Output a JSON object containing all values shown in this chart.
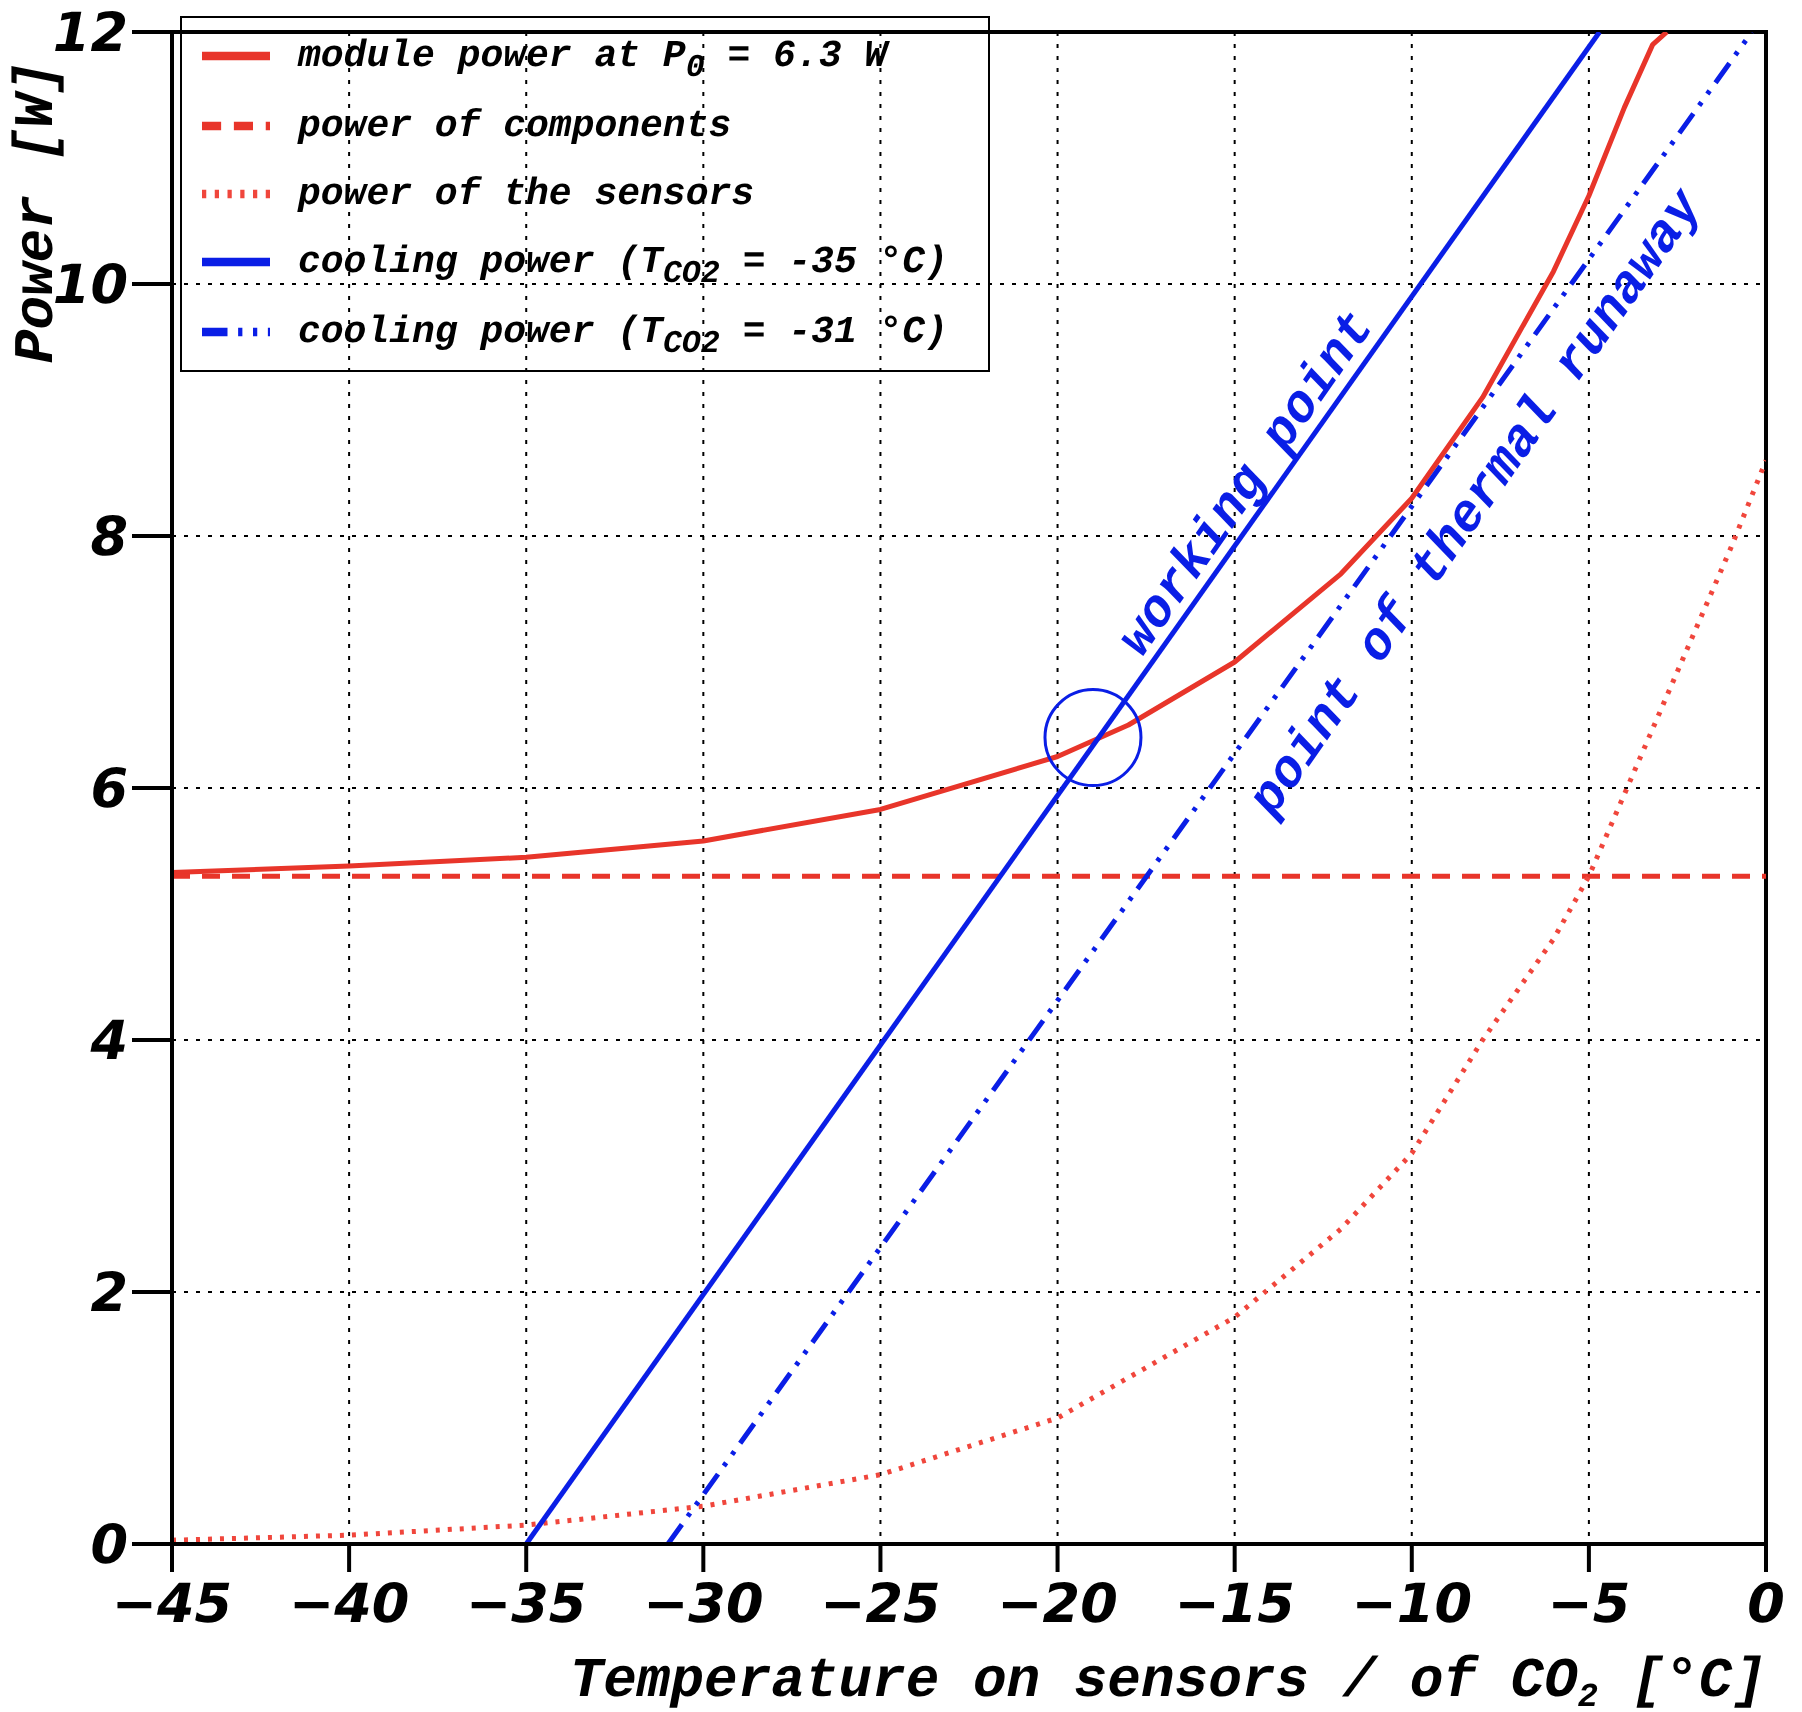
{
  "chart_data": {
    "type": "line",
    "xlabel": "Temperature on sensors / of CO$_{2}$ [°C]",
    "ylabel": "Power [W]",
    "xlim": [
      -45,
      0
    ],
    "xticks": [
      -45,
      -40,
      -35,
      -30,
      -25,
      -20,
      -15,
      -10,
      -5,
      0
    ],
    "ylim": [
      0,
      12
    ],
    "yticks": [
      0,
      2,
      4,
      6,
      8,
      10,
      12
    ],
    "grid": true,
    "legend": "top left",
    "marker": "none",
    "series": [
      {
        "name": "module power at P$_{0}$ = 6.3 W",
        "color": "#e8352a",
        "line_style": "solid",
        "x": [
          -45,
          -40,
          -35,
          -30,
          -25,
          -20,
          -18,
          -15,
          -12,
          -10,
          -8,
          -6,
          -5,
          -4,
          -3.2,
          -2.8
        ],
        "values": [
          5.33,
          5.38,
          5.45,
          5.58,
          5.83,
          6.25,
          6.5,
          7.0,
          7.7,
          8.3,
          9.1,
          10.1,
          10.7,
          11.4,
          11.9,
          12
        ]
      },
      {
        "name": "power of components",
        "color": "#e8352a",
        "line_style": "dashed",
        "x": [
          -45,
          0
        ],
        "values": [
          5.3,
          5.3
        ]
      },
      {
        "name": "power of the sensors",
        "color": "#f0463c",
        "line_style": "dotted",
        "x": [
          -45,
          -40,
          -35,
          -30,
          -25,
          -20,
          -15,
          -12,
          -10,
          -8,
          -6,
          -5,
          -3,
          -1,
          0
        ],
        "values": [
          0.03,
          0.07,
          0.15,
          0.3,
          0.55,
          1.0,
          1.8,
          2.5,
          3.1,
          4.0,
          4.8,
          5.3,
          6.6,
          7.9,
          8.6
        ]
      },
      {
        "name": "cooling power (T$_{CO2}$ = -35 °C)",
        "color": "#0a1ee6",
        "line_style": "solid",
        "x": [
          -35,
          -4.7
        ],
        "values": [
          0,
          12
        ]
      },
      {
        "name": "cooling power (T$_{CO2}$ = -31 °C)",
        "color": "#0a1ee6",
        "line_style": "dashdot",
        "x": [
          -31,
          -0.4
        ],
        "values": [
          0,
          12
        ]
      }
    ],
    "annotations": [
      {
        "text": "working point",
        "x": -19,
        "y": 6.4
      },
      {
        "text": "point of thermal runaway",
        "x": -11,
        "y": 8.1
      }
    ]
  }
}
